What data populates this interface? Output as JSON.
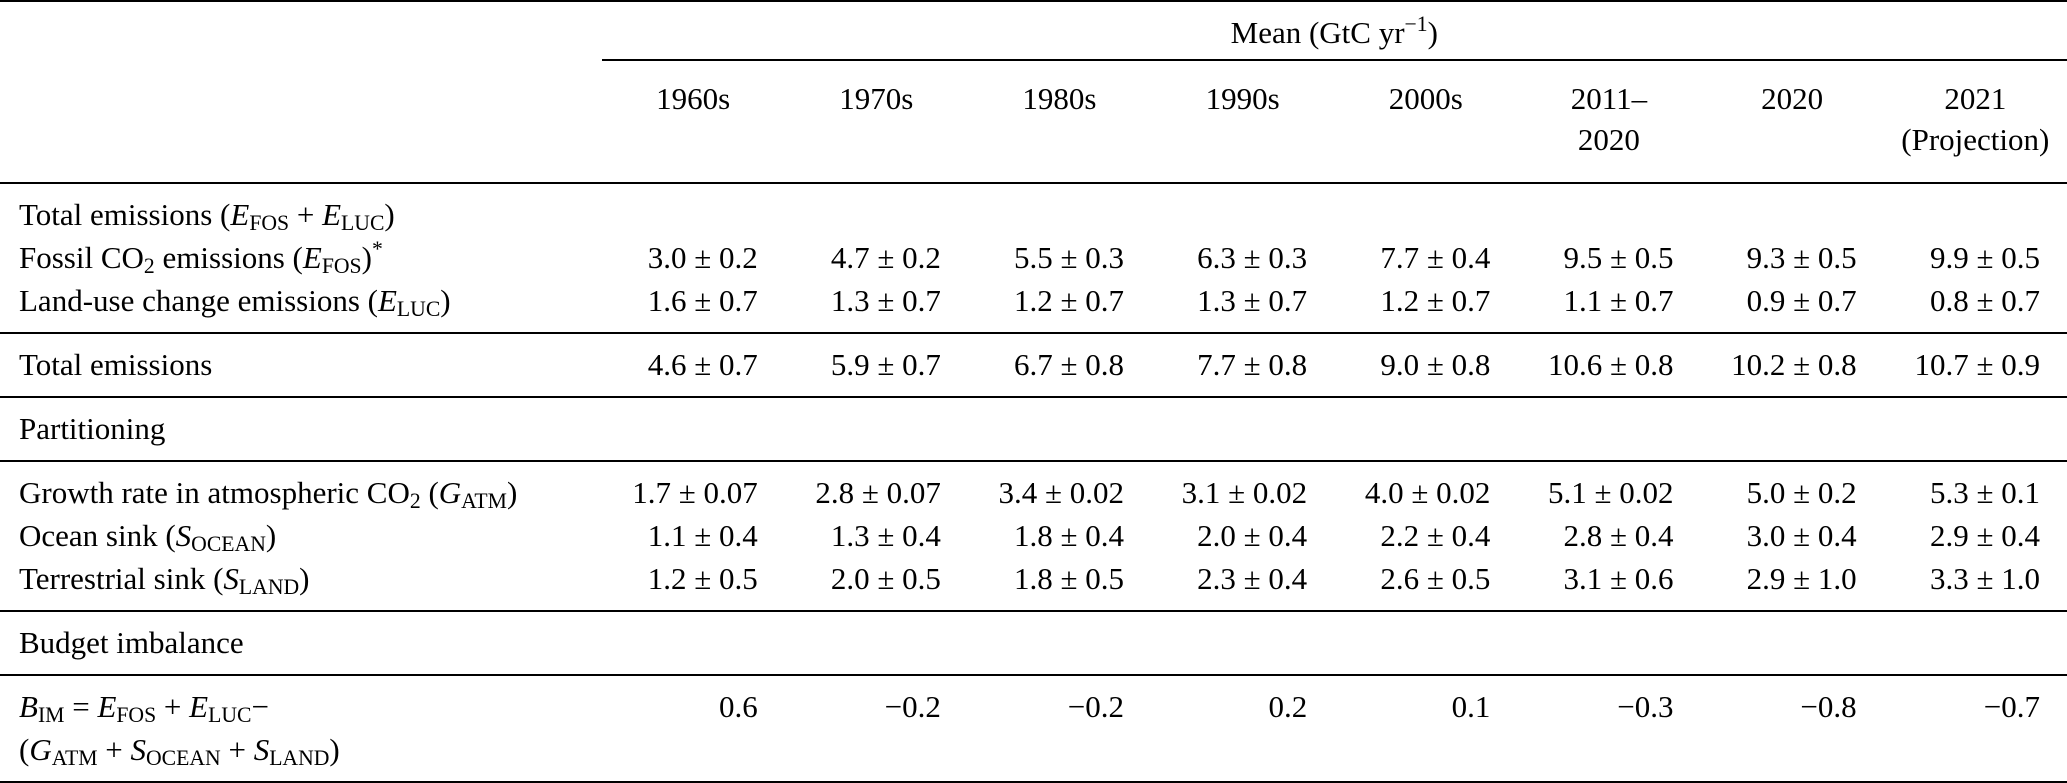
{
  "page": {
    "background_color": "#ffffff",
    "text_color": "#000000",
    "rule_color": "#000000"
  },
  "table": {
    "mean_header_html": "Mean (GtC yr<sup>−1</sup>)",
    "columns": [
      {
        "id": "1960s",
        "lines": [
          "1960s"
        ]
      },
      {
        "id": "1970s",
        "lines": [
          "1970s"
        ]
      },
      {
        "id": "1980s",
        "lines": [
          "1980s"
        ]
      },
      {
        "id": "1990s",
        "lines": [
          "1990s"
        ]
      },
      {
        "id": "2000s",
        "lines": [
          "2000s"
        ]
      },
      {
        "id": "2011-2020",
        "lines": [
          "2011–",
          "2020"
        ]
      },
      {
        "id": "2020",
        "lines": [
          "2020"
        ]
      },
      {
        "id": "2021-projection",
        "lines": [
          "2021",
          "(Projection)"
        ]
      }
    ],
    "sections": [
      {
        "name": "emission-components",
        "rows": [
          {
            "id": "total-emissions-formula",
            "label_html": "Total emissions (<i>E</i><sub>FOS</sub> + <i>E</i><sub>LUC</sub>)",
            "values": [
              "",
              "",
              "",
              "",
              "",
              "",
              "",
              ""
            ]
          },
          {
            "id": "fossil-co2-emissions",
            "label_html": "Fossil CO<sub>2</sub> emissions (<i>E</i><sub>FOS</sub>)<sup>*</sup>",
            "values": [
              "3.0 ± 0.2",
              "4.7 ± 0.2",
              "5.5 ± 0.3",
              "6.3 ± 0.3",
              "7.7 ± 0.4",
              "9.5 ± 0.5",
              "9.3 ± 0.5",
              "9.9 ± 0.5"
            ]
          },
          {
            "id": "land-use-change-emissions",
            "label_html": "Land-use change emissions (<i>E</i><sub>LUC</sub>)",
            "values": [
              "1.6 ± 0.7",
              "1.3 ± 0.7",
              "1.2 ± 0.7",
              "1.3 ± 0.7",
              "1.2 ± 0.7",
              "1.1 ± 0.7",
              "0.9 ± 0.7",
              "0.8 ± 0.7"
            ]
          }
        ]
      },
      {
        "name": "total-emissions",
        "rows": [
          {
            "id": "total-emissions",
            "label_html": "Total emissions",
            "values": [
              "4.6 ± 0.7",
              "5.9 ± 0.7",
              "6.7 ± 0.8",
              "7.7 ± 0.8",
              "9.0 ± 0.8",
              "10.6 ± 0.8",
              "10.2 ± 0.8",
              "10.7 ± 0.9"
            ]
          }
        ]
      },
      {
        "name": "partitioning-header",
        "rows": [
          {
            "id": "partitioning",
            "label_html": "Partitioning",
            "values": [
              "",
              "",
              "",
              "",
              "",
              "",
              "",
              ""
            ]
          }
        ]
      },
      {
        "name": "partitioning-rows",
        "rows": [
          {
            "id": "growth-rate-atmospheric-co2",
            "label_html": "Growth rate in atmospheric CO<sub>2</sub> (<i>G</i><sub>ATM</sub>)",
            "values": [
              "1.7 ± 0.07",
              "2.8 ± 0.07",
              "3.4 ± 0.02",
              "3.1 ± 0.02",
              "4.0 ± 0.02",
              "5.1 ± 0.02",
              "5.0 ± 0.2",
              "5.3 ± 0.1"
            ]
          },
          {
            "id": "ocean-sink",
            "label_html": "Ocean sink (<i>S</i><sub>OCEAN</sub>)",
            "values": [
              "1.1 ± 0.4",
              "1.3 ± 0.4",
              "1.8 ± 0.4",
              "2.0 ± 0.4",
              "2.2 ± 0.4",
              "2.8 ± 0.4",
              "3.0 ± 0.4",
              "2.9 ± 0.4"
            ]
          },
          {
            "id": "terrestrial-sink",
            "label_html": "Terrestrial sink (<i>S</i><sub>LAND</sub>)",
            "values": [
              "1.2 ± 0.5",
              "2.0 ± 0.5",
              "1.8 ± 0.5",
              "2.3 ± 0.4",
              "2.6 ± 0.5",
              "3.1 ± 0.6",
              "2.9 ± 1.0",
              "3.3 ± 1.0"
            ]
          }
        ]
      },
      {
        "name": "budget-imbalance-header",
        "rows": [
          {
            "id": "budget-imbalance",
            "label_html": "Budget imbalance",
            "values": [
              "",
              "",
              "",
              "",
              "",
              "",
              "",
              ""
            ]
          }
        ]
      },
      {
        "name": "budget-imbalance-row",
        "rows": [
          {
            "id": "budget-imbalance-formula",
            "label_html": "<i>B</i><sub>IM</sub> = <i>E</i><sub>FOS</sub> + <i>E</i><sub>LUC</sub>−<br>(<i>G</i><sub>ATM</sub> + <i>S</i><sub>OCEAN</sub> + <i>S</i><sub>LAND</sub>)",
            "values": [
              "0.6",
              "−0.2",
              "−0.2",
              "0.2",
              "0.1",
              "−0.3",
              "−0.8",
              "−0.7"
            ]
          }
        ]
      }
    ]
  }
}
